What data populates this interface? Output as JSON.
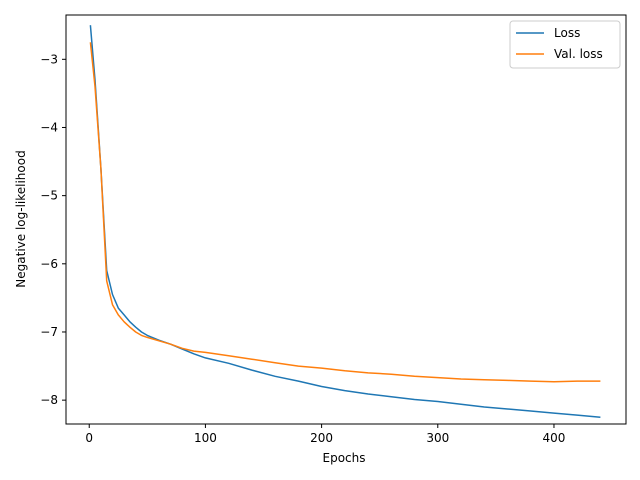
{
  "chart_data": {
    "type": "line",
    "xlabel": "Epochs",
    "ylabel": "Negative log-likelihood",
    "xlim": [
      -20,
      462
    ],
    "ylim": [
      -8.35,
      -2.35
    ],
    "xticks": [
      0,
      100,
      200,
      300,
      400
    ],
    "xtick_labels": [
      "0",
      "100",
      "200",
      "300",
      "400"
    ],
    "yticks": [
      -3,
      -4,
      -5,
      -6,
      -7,
      -8
    ],
    "ytick_labels": [
      "−3",
      "−4",
      "−5",
      "−6",
      "−7",
      "−8"
    ],
    "grid": false,
    "legend_position": "top-right",
    "series": [
      {
        "name": "Loss",
        "color": "#1f77b4",
        "x": [
          1,
          5,
          10,
          15,
          20,
          25,
          30,
          35,
          40,
          45,
          50,
          60,
          70,
          80,
          90,
          100,
          120,
          140,
          160,
          180,
          200,
          220,
          240,
          260,
          280,
          300,
          320,
          340,
          360,
          380,
          400,
          420,
          440
        ],
        "y": [
          -2.5,
          -3.3,
          -4.6,
          -6.1,
          -6.45,
          -6.65,
          -6.75,
          -6.85,
          -6.93,
          -7.0,
          -7.05,
          -7.12,
          -7.18,
          -7.25,
          -7.32,
          -7.38,
          -7.46,
          -7.56,
          -7.65,
          -7.72,
          -7.8,
          -7.86,
          -7.91,
          -7.95,
          -7.99,
          -8.02,
          -8.06,
          -8.1,
          -8.13,
          -8.16,
          -8.19,
          -8.22,
          -8.25
        ]
      },
      {
        "name": "Val. loss",
        "color": "#ff7f0e",
        "x": [
          1,
          5,
          10,
          15,
          20,
          25,
          30,
          35,
          40,
          45,
          50,
          60,
          70,
          80,
          90,
          100,
          120,
          140,
          160,
          180,
          200,
          220,
          240,
          260,
          280,
          300,
          320,
          340,
          360,
          380,
          400,
          420,
          440
        ],
        "y": [
          -2.75,
          -3.4,
          -4.6,
          -6.25,
          -6.6,
          -6.75,
          -6.85,
          -6.93,
          -7.0,
          -7.05,
          -7.08,
          -7.13,
          -7.18,
          -7.24,
          -7.28,
          -7.3,
          -7.35,
          -7.4,
          -7.45,
          -7.5,
          -7.53,
          -7.57,
          -7.6,
          -7.62,
          -7.65,
          -7.67,
          -7.69,
          -7.7,
          -7.71,
          -7.72,
          -7.73,
          -7.72,
          -7.72
        ]
      }
    ]
  }
}
